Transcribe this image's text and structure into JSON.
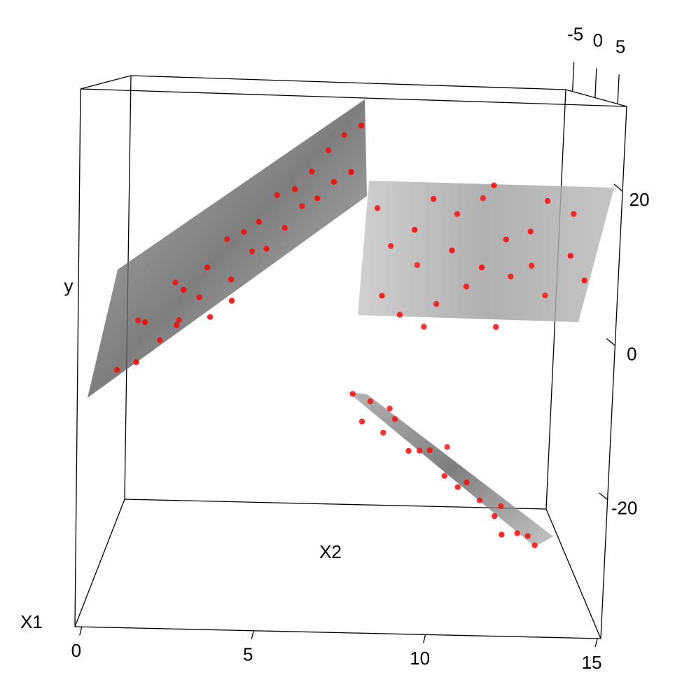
{
  "chart_data": {
    "type": "scatter3d",
    "x_label": "X1",
    "y_label": "y",
    "z_label": "X2",
    "color": "#ff0000",
    "xlim": [
      -0.2,
      15.1
    ],
    "ylim": [
      -38,
      31
    ],
    "zlim": [
      -6.5,
      7
    ],
    "xticks": [
      0,
      5,
      10,
      15
    ],
    "yticks": [
      -20,
      0,
      20
    ],
    "zticks": [
      -5,
      0,
      5
    ],
    "x": [
      0.3,
      0.8,
      1.0,
      1.3,
      1.6,
      1.9,
      2.2,
      2.5,
      2.8,
      3.1,
      3.3,
      3.6,
      3.9,
      4.2,
      4.4,
      4.7,
      5.0,
      5.2,
      5.5,
      5.8,
      6.0,
      6.3,
      6.5,
      6.8,
      7.0,
      7.3,
      7.5,
      7.8,
      4.0,
      2.0,
      8.4,
      8.6,
      8.9,
      9.2,
      9.5,
      9.8,
      10.1,
      10.4,
      10.7,
      11.0,
      11.3,
      11.6,
      11.9,
      12.2,
      12.5,
      12.8,
      13.1,
      13.4,
      13.7,
      14.0,
      14.3,
      14.6,
      14.9,
      10.0,
      12.0,
      7.8,
      8.1,
      8.4,
      8.8,
      9.2,
      9.6,
      10.0,
      10.4,
      10.8,
      11.2,
      11.6,
      12.0,
      12.4,
      12.8,
      13.2,
      13.6,
      13.9,
      9.0,
      11.0,
      12.6
    ],
    "y": [
      -10,
      -4,
      -8,
      -2,
      -6,
      1,
      -3,
      3,
      0,
      5,
      -1,
      8,
      4,
      10,
      6,
      12,
      9,
      15,
      11,
      17,
      13,
      19,
      16,
      22,
      18,
      24,
      20,
      26,
      2,
      -5,
      14,
      2,
      8,
      -1,
      12,
      5,
      16,
      0,
      9,
      13,
      3,
      7,
      15,
      -2,
      10,
      4,
      12,
      6,
      16,
      1,
      9,
      14,
      5,
      -3,
      18,
      -13,
      -16,
      -15,
      -18,
      -17,
      -20,
      -21,
      -22,
      -24,
      -25,
      -26,
      -28,
      -29,
      -30,
      -32,
      -33,
      -35,
      -15,
      -22,
      -31
    ],
    "z": [
      0.5,
      -1,
      1.5,
      2,
      0,
      -2,
      1,
      2.5,
      -0.5,
      0.5,
      2,
      -1.5,
      1.5,
      0,
      -2,
      1,
      2.5,
      -1,
      0.5,
      1.5,
      -2,
      0,
      2,
      -0.5,
      1,
      -1.5,
      2.5,
      0.5,
      3,
      -2.5,
      0,
      1,
      -1,
      0.5,
      2,
      -1.5,
      1,
      -0.5,
      1.5,
      -1,
      0,
      2,
      -2,
      1,
      0,
      -1,
      1.5,
      -0.5,
      0.5,
      -1.5,
      2,
      0,
      1,
      0,
      0.5,
      0,
      1,
      -1,
      0.5,
      -0.5,
      1,
      0,
      -1,
      0.5,
      1,
      -0.5,
      0,
      1,
      -1,
      0.5,
      0,
      -0.5,
      0,
      -1.5,
      1.5
    ]
  }
}
